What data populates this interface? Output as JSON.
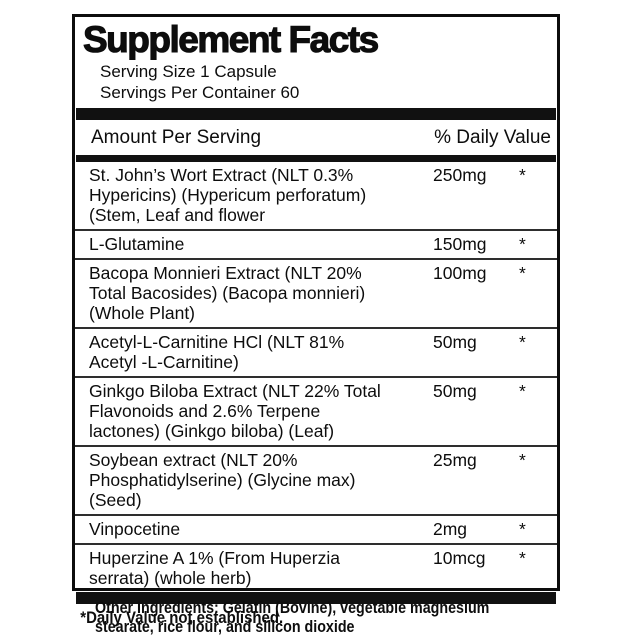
{
  "label": {
    "title": "Supplement Facts",
    "serving_size": "Serving Size 1 Capsule",
    "servings_per_container": "Servings Per Container 60",
    "header": {
      "amount": "Amount Per Serving",
      "daily_value": "% Daily Value"
    },
    "rows": [
      {
        "name": "St. John’s Wort Extract (NLT 0.3%\nHypericins) (Hypericum perforatum)\n(Stem, Leaf and flower",
        "amount": "250mg",
        "dv": "*"
      },
      {
        "name": "L-Glutamine",
        "amount": "150mg",
        "dv": "*"
      },
      {
        "name": "Bacopa Monnieri Extract (NLT 20%\nTotal Bacosides) (Bacopa monnieri)\n(Whole Plant)",
        "amount": "100mg",
        "dv": "*"
      },
      {
        "name": "Acetyl-L-Carnitine HCl (NLT 81%\nAcetyl -L-Carnitine)",
        "amount": "50mg",
        "dv": "*"
      },
      {
        "name": "Ginkgo Biloba Extract (NLT 22% Total\nFlavonoids and 2.6% Terpene\nlactones) (Ginkgo biloba) (Leaf)",
        "amount": "50mg",
        "dv": "*"
      },
      {
        "name": "Soybean extract (NLT 20%\nPhosphatidylserine) (Glycine max)\n(Seed)",
        "amount": "25mg",
        "dv": "*"
      },
      {
        "name": "Vinpocetine",
        "amount": "2mg",
        "dv": "*"
      },
      {
        "name": "Huperzine A 1% (From Huperzia\nserrata) (whole herb)",
        "amount": "10mcg",
        "dv": "*"
      }
    ],
    "footnote": "*Daily Value not established.",
    "other_ingredients": "Other Ingredients: Gelatin (Bovine), vegetable magnesium\nstearate, rice flour, and silicon dioxide",
    "colors": {
      "background": "#ffffff",
      "text": "#0d0d0d",
      "bar": "#111111",
      "separator": "#2e2e2e"
    }
  }
}
